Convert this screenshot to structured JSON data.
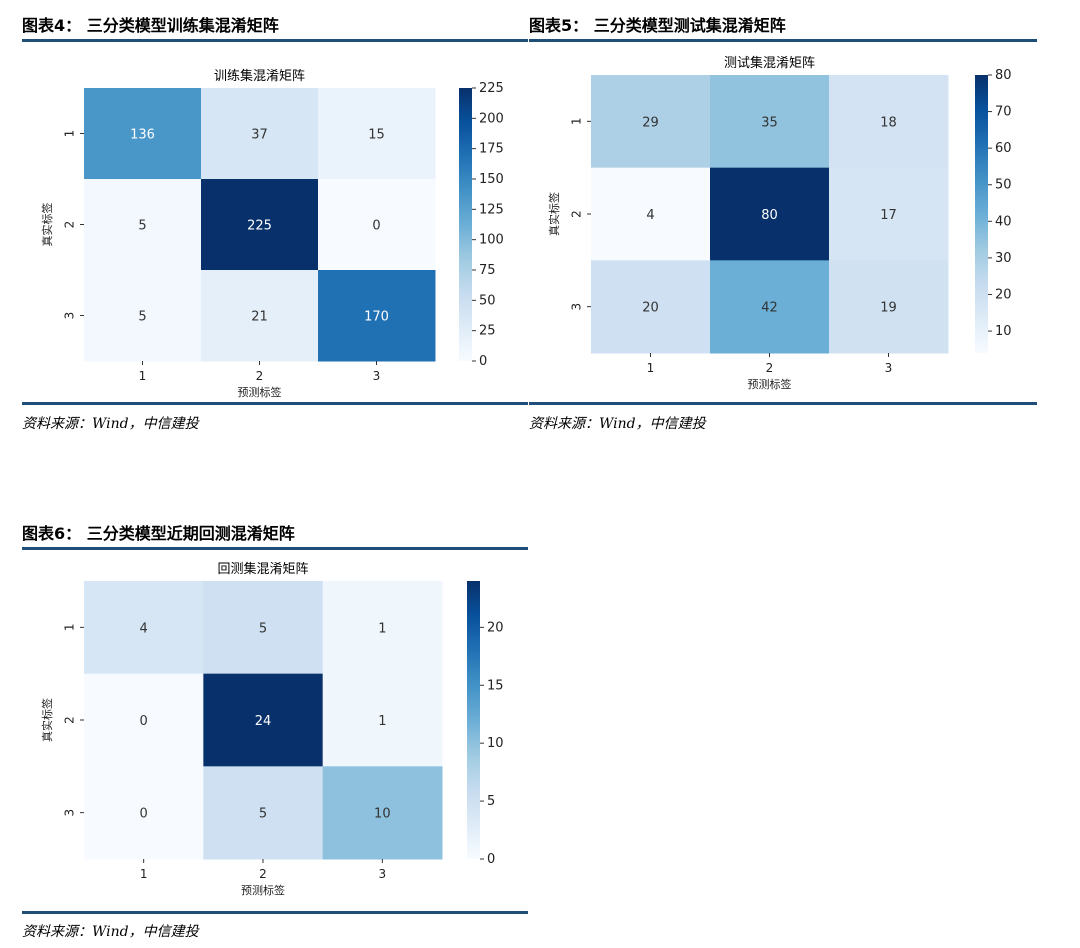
{
  "figures": [
    {
      "caption": "图表4：  三分类模型训练集混淆矩阵",
      "source": "资料来源：Wind，中信建投"
    },
    {
      "caption": "图表5：  三分类模型测试集混淆矩阵",
      "source": "资料来源：Wind，中信建投"
    },
    {
      "caption": "图表6：  三分类模型近期回测混淆矩阵",
      "source": "资料来源：Wind，中信建投"
    }
  ],
  "chart_data": [
    {
      "type": "heatmap",
      "title": "训练集混淆矩阵",
      "xlabel": "预测标签",
      "ylabel": "真实标签",
      "x_categories": [
        "1",
        "2",
        "3"
      ],
      "y_categories": [
        "1",
        "2",
        "3"
      ],
      "matrix": [
        [
          136,
          37,
          15
        ],
        [
          5,
          225,
          0
        ],
        [
          5,
          21,
          170
        ]
      ],
      "colorbar": {
        "min": 0,
        "max": 225,
        "ticks": [
          0,
          25,
          50,
          75,
          100,
          125,
          150,
          175,
          200,
          225
        ],
        "colormap": "Blues"
      }
    },
    {
      "type": "heatmap",
      "title": "测试集混淆矩阵",
      "xlabel": "预测标签",
      "ylabel": "真实标签",
      "x_categories": [
        "1",
        "2",
        "3"
      ],
      "y_categories": [
        "1",
        "2",
        "3"
      ],
      "matrix": [
        [
          29,
          35,
          18
        ],
        [
          4,
          80,
          17
        ],
        [
          20,
          42,
          19
        ]
      ],
      "colorbar": {
        "min": 4,
        "max": 80,
        "ticks": [
          10,
          20,
          30,
          40,
          50,
          60,
          70,
          80
        ],
        "colormap": "Blues"
      }
    },
    {
      "type": "heatmap",
      "title": "回测集混淆矩阵",
      "xlabel": "预测标签",
      "ylabel": "真实标签",
      "x_categories": [
        "1",
        "2",
        "3"
      ],
      "y_categories": [
        "1",
        "2",
        "3"
      ],
      "matrix": [
        [
          4,
          5,
          1
        ],
        [
          0,
          24,
          1
        ],
        [
          0,
          5,
          10
        ]
      ],
      "colorbar": {
        "min": 0,
        "max": 24,
        "ticks": [
          0,
          5,
          10,
          15,
          20
        ],
        "colormap": "Blues"
      }
    }
  ]
}
